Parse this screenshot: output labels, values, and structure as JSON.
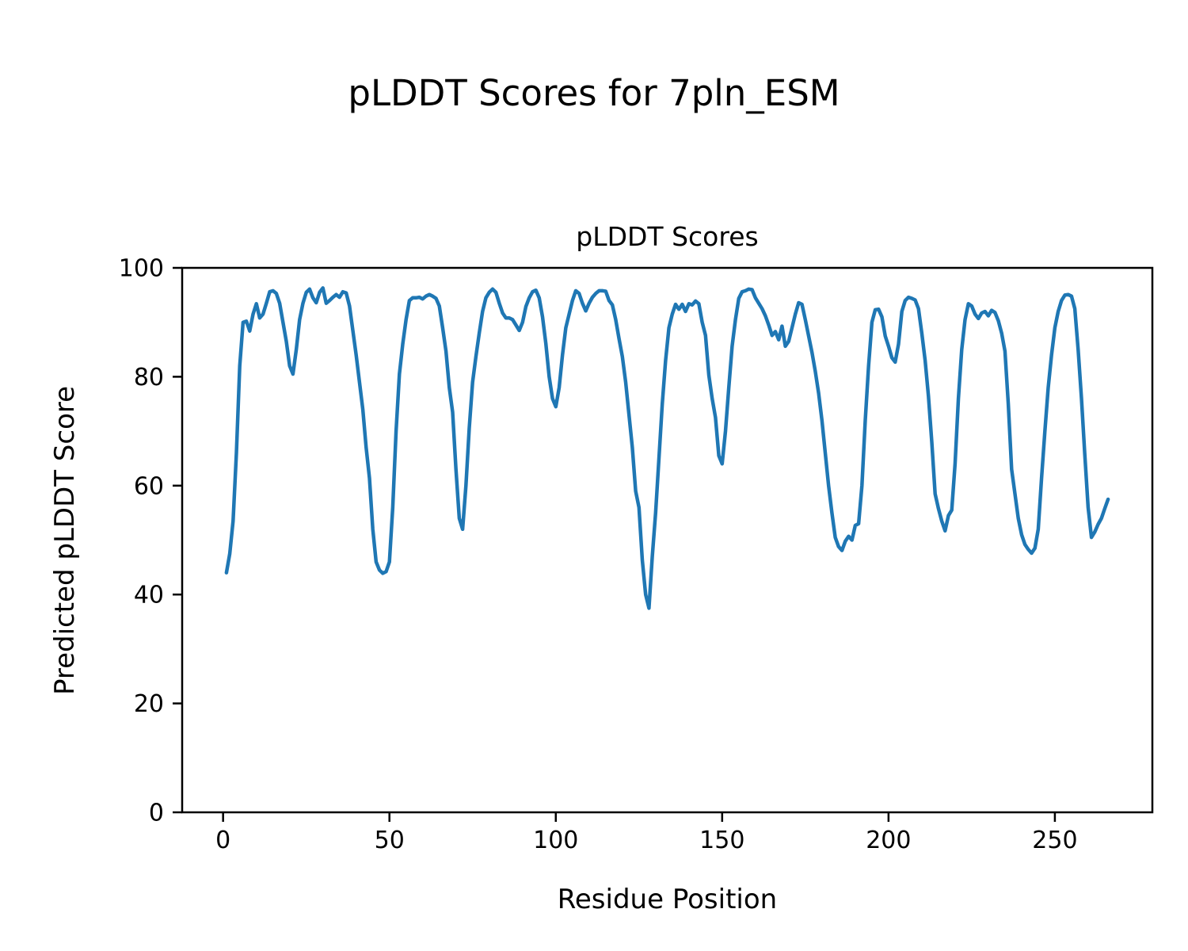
{
  "figure": {
    "suptitle": "pLDDT Scores for 7pln_ESM"
  },
  "chart_data": {
    "type": "line",
    "title": "pLDDT Scores",
    "xlabel": "Residue Position",
    "ylabel": "Predicted pLDDT Score",
    "xlim": [
      -12.3,
      279.3
    ],
    "ylim": [
      0,
      100
    ],
    "xticks": [
      0,
      50,
      100,
      150,
      200,
      250
    ],
    "yticks": [
      0,
      20,
      40,
      60,
      80,
      100
    ],
    "grid": false,
    "legend": "none",
    "line_color": "#1f77b4",
    "series": [
      {
        "name": "pLDDT",
        "x_start": 1,
        "x_step": 1,
        "values": [
          44,
          47.5,
          53.5,
          66,
          82,
          90,
          90.2,
          88.4,
          91.5,
          93.4,
          90.8,
          91.5,
          93.5,
          95.6,
          95.8,
          95.3,
          93.5,
          90,
          86.5,
          82,
          80.5,
          85,
          90.5,
          93.5,
          95.5,
          96.1,
          94.5,
          93.6,
          95.5,
          96.3,
          93.5,
          94,
          94.6,
          95.1,
          94.6,
          95.6,
          95.4,
          93,
          88.5,
          84,
          79,
          74,
          67,
          61.4,
          52,
          46,
          44.5,
          43.9,
          44.2,
          46,
          56,
          70,
          80.5,
          86,
          90.5,
          94,
          94.5,
          94.5,
          94.6,
          94.3,
          94.8,
          95.1,
          94.8,
          94.4,
          93,
          89,
          84.7,
          78,
          73.5,
          63,
          54,
          52,
          60,
          70.6,
          79,
          83.7,
          88,
          92,
          94.5,
          95.5,
          96.1,
          95.5,
          93.5,
          91.7,
          90.8,
          90.8,
          90.5,
          89.5,
          88.5,
          90,
          92.9,
          94.5,
          95.6,
          95.9,
          94.5,
          91,
          86.1,
          80,
          76,
          74.5,
          78,
          84,
          89,
          91.5,
          94,
          95.8,
          95.3,
          93.5,
          92.1,
          93.5,
          94.6,
          95.3,
          95.8,
          95.8,
          95.7,
          94,
          93.2,
          90.5,
          87,
          83.7,
          79,
          73,
          67,
          59,
          56,
          46.3,
          40,
          37.5,
          47,
          55,
          65,
          75,
          83,
          89,
          91.5,
          93.3,
          92.4,
          93.3,
          92,
          93.4,
          93.2,
          93.9,
          93.4,
          90,
          87.6,
          80.3,
          76,
          72.5,
          65.5,
          64,
          70,
          78,
          85.6,
          90.5,
          94.4,
          95.6,
          95.8,
          96.1,
          96,
          94.5,
          93.5,
          92.5,
          91.2,
          89.5,
          87.6,
          88.3,
          86.8,
          89.3,
          85.6,
          86.5,
          89,
          91.5,
          93.6,
          93.3,
          90.5,
          87.5,
          84.5,
          81,
          77,
          72,
          66,
          60,
          55,
          50.5,
          48.8,
          48.1,
          49.8,
          50.7,
          50,
          52.7,
          53,
          60,
          72,
          82,
          90,
          92.3,
          92.4,
          91,
          87.5,
          85.6,
          83.5,
          82.7,
          86,
          92,
          94,
          94.6,
          94.4,
          94.1,
          92.5,
          88,
          83,
          76.4,
          68,
          58.5,
          55.8,
          53.5,
          51.7,
          54.5,
          55.5,
          64,
          76,
          85,
          90.5,
          93.4,
          93,
          91.5,
          90.7,
          91.7,
          92,
          91.2,
          92.2,
          91.8,
          90.3,
          88,
          84.7,
          75,
          63,
          58.5,
          54,
          51,
          49.2,
          48.3,
          47.6,
          48.5,
          52,
          61.4,
          70,
          78,
          84,
          89,
          92,
          94,
          95,
          95.1,
          94.8,
          92.5,
          85,
          76,
          65.7,
          56,
          50.5,
          51.5,
          52.9,
          54,
          55.8,
          57.5
        ]
      }
    ]
  }
}
